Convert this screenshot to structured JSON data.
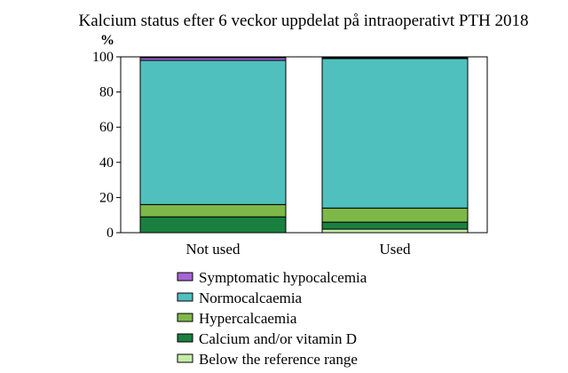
{
  "chart_data": {
    "type": "bar",
    "stacked": true,
    "title": "Kalcium status efter 6 veckor uppdelat på intraoperativt PTH 2018",
    "ylabel": "%",
    "xlabel": "",
    "ylim": [
      0,
      100
    ],
    "yticks": [
      "0",
      "20",
      "40",
      "60",
      "80",
      "100"
    ],
    "categories": [
      "Not used",
      "Used"
    ],
    "grid": false,
    "legend_position": "bottom",
    "series": [
      {
        "name": "Below the reference range",
        "values": [
          0,
          2
        ],
        "color": "#c6eca6"
      },
      {
        "name": "Calcium and/or vitamin D",
        "values": [
          9,
          4
        ],
        "color": "#1a8040"
      },
      {
        "name": "Hypercalcaemia",
        "values": [
          7,
          8
        ],
        "color": "#7db848"
      },
      {
        "name": "Normocalcaemia",
        "values": [
          82,
          85
        ],
        "color": "#4fc0be"
      },
      {
        "name": "Symptomatic hypocalcemia",
        "values": [
          1.5,
          0.5
        ],
        "color": "#a764d6"
      }
    ],
    "legend_order": [
      "Symptomatic hypocalcemia",
      "Normocalcaemia",
      "Hypercalcaemia",
      "Calcium and/or vitamin D",
      "Below the reference range"
    ]
  }
}
